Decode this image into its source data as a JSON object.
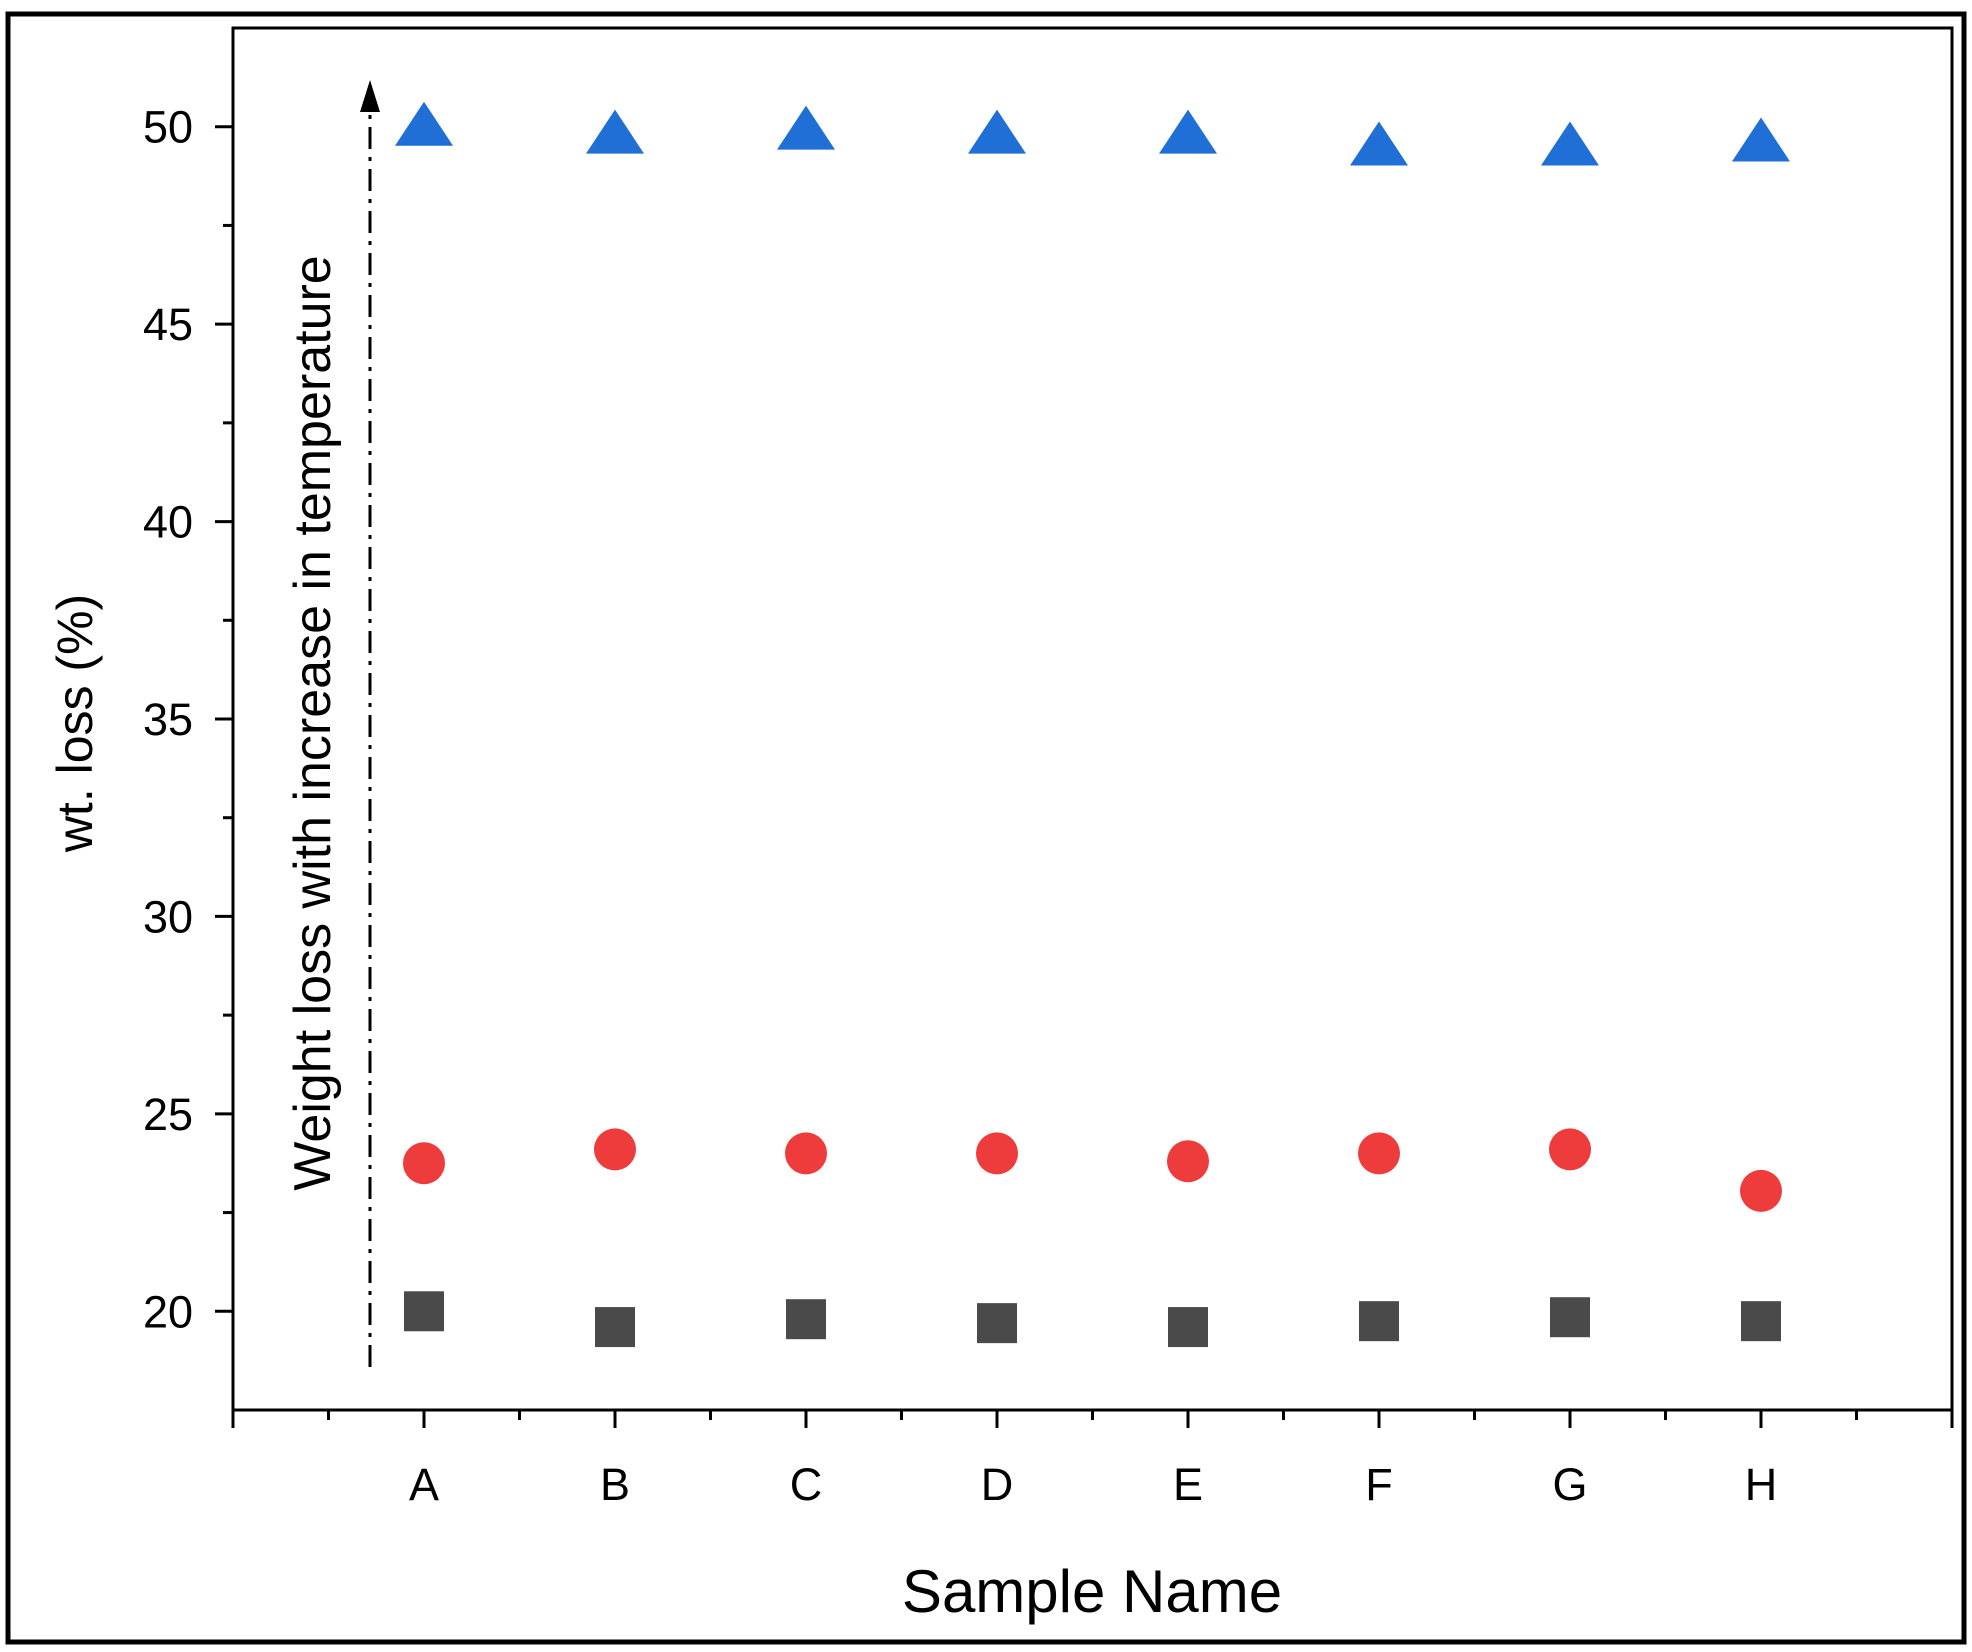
{
  "chart_data": {
    "type": "scatter",
    "xlabel": "Sample Name",
    "ylabel": "wt. loss (%)",
    "annotation": "Weight loss with increase in temperature",
    "categories": [
      "A",
      "B",
      "C",
      "D",
      "E",
      "F",
      "G",
      "H"
    ],
    "series": [
      {
        "marker": "square",
        "color": "#4a4a4a",
        "values": [
          20.0,
          19.6,
          19.8,
          19.7,
          19.6,
          19.75,
          19.85,
          19.75
        ]
      },
      {
        "marker": "circle",
        "color": "#ee3b3b",
        "values": [
          23.75,
          24.1,
          24.0,
          24.0,
          23.8,
          24.0,
          24.1,
          23.05
        ]
      },
      {
        "marker": "triangle",
        "color": "#1f6fd6",
        "values": [
          50.0,
          49.8,
          49.9,
          49.8,
          49.8,
          49.5,
          49.5,
          49.6
        ]
      }
    ],
    "ylim": [
      17.5,
      52.5
    ],
    "yticks": [
      20,
      25,
      30,
      35,
      40,
      45,
      50
    ]
  }
}
